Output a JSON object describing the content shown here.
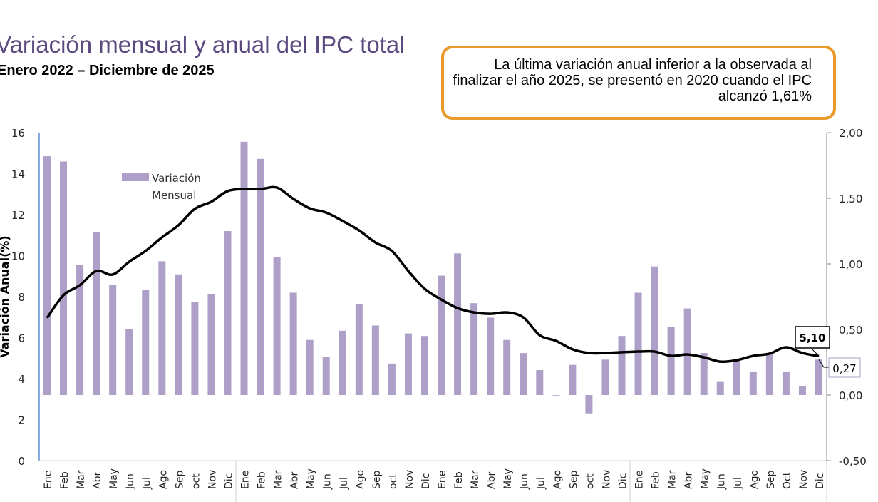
{
  "title": "Variación mensual y anual del IPC total",
  "subtitle": "Enero 2022 – Diciembre de 2025",
  "note": "La última variación anual inferior  a la observada al finalizar el año 2025, se presentó en 2020 cuando el IPC alcanzó 1,61%",
  "chart_data": {
    "type": "bar+line",
    "ylabel": "Variación Anual(%)",
    "ylim": [
      0,
      16
    ],
    "y_ticks": [
      "0",
      "2",
      "4",
      "6",
      "8",
      "10",
      "12",
      "14",
      "16"
    ],
    "y2lim": [
      -0.5,
      2.0
    ],
    "y2_ticks": [
      "-0,50",
      "0,00",
      "0,50",
      "1,00",
      "1,50",
      "2,00"
    ],
    "categories": [
      "Ene",
      "Feb",
      "Mar",
      "Abr",
      "May",
      "Jun",
      "Jul",
      "Ago",
      "Sep",
      "oct",
      "Nov",
      "Dic",
      "Ene",
      "Feb",
      "Mar",
      "Abr",
      "May",
      "Jun",
      "Jul",
      "Ago",
      "Sep",
      "oct",
      "Nov",
      "Dic",
      "Ene",
      "Feb",
      "Mar",
      "Abr",
      "May",
      "Jun",
      "Jul",
      "Ago",
      "Sep",
      "oct",
      "Nov",
      "Dic",
      "Ene",
      "Feb",
      "Mar",
      "Abr",
      "May",
      "Jun",
      "Jul",
      "Ago",
      "Sep",
      "Oct",
      "Nov",
      "Dic"
    ],
    "legend": {
      "bar_label_line1": "Variación",
      "bar_label_line2": "Mensual",
      "placement": "top-left"
    },
    "series": [
      {
        "name": "Variación Mensual",
        "type": "bar",
        "axis": "right",
        "color": "#ae9fc9",
        "values": [
          1.82,
          1.78,
          0.99,
          1.24,
          0.84,
          0.5,
          0.8,
          1.02,
          0.92,
          0.71,
          0.77,
          1.25,
          1.93,
          1.8,
          1.05,
          0.78,
          0.42,
          0.29,
          0.49,
          0.69,
          0.53,
          0.24,
          0.47,
          0.45,
          0.91,
          1.08,
          0.7,
          0.59,
          0.42,
          0.32,
          0.19,
          0.0,
          0.23,
          -0.14,
          0.27,
          0.45,
          0.78,
          0.98,
          0.52,
          0.66,
          0.32,
          0.1,
          0.26,
          0.18,
          0.31,
          0.18,
          0.07,
          0.27
        ]
      },
      {
        "type": "line",
        "axis": "left",
        "color": "#000000",
        "values": [
          6.96,
          8.07,
          8.56,
          9.25,
          9.08,
          9.7,
          10.23,
          10.89,
          11.48,
          12.28,
          12.63,
          13.15,
          13.25,
          13.25,
          13.32,
          12.77,
          12.31,
          12.1,
          11.69,
          11.23,
          10.64,
          10.23,
          9.25,
          8.38,
          7.86,
          7.44,
          7.23,
          7.16,
          7.23,
          6.99,
          6.12,
          5.84,
          5.43,
          5.25,
          5.25,
          5.29,
          5.32,
          5.32,
          5.11,
          5.18,
          5.04,
          4.83,
          4.9,
          5.11,
          5.22,
          5.53,
          5.25,
          5.1
        ]
      }
    ],
    "data_labels": {
      "annual_last": "5,10",
      "monthly_last": "0,27"
    },
    "grid": false
  }
}
